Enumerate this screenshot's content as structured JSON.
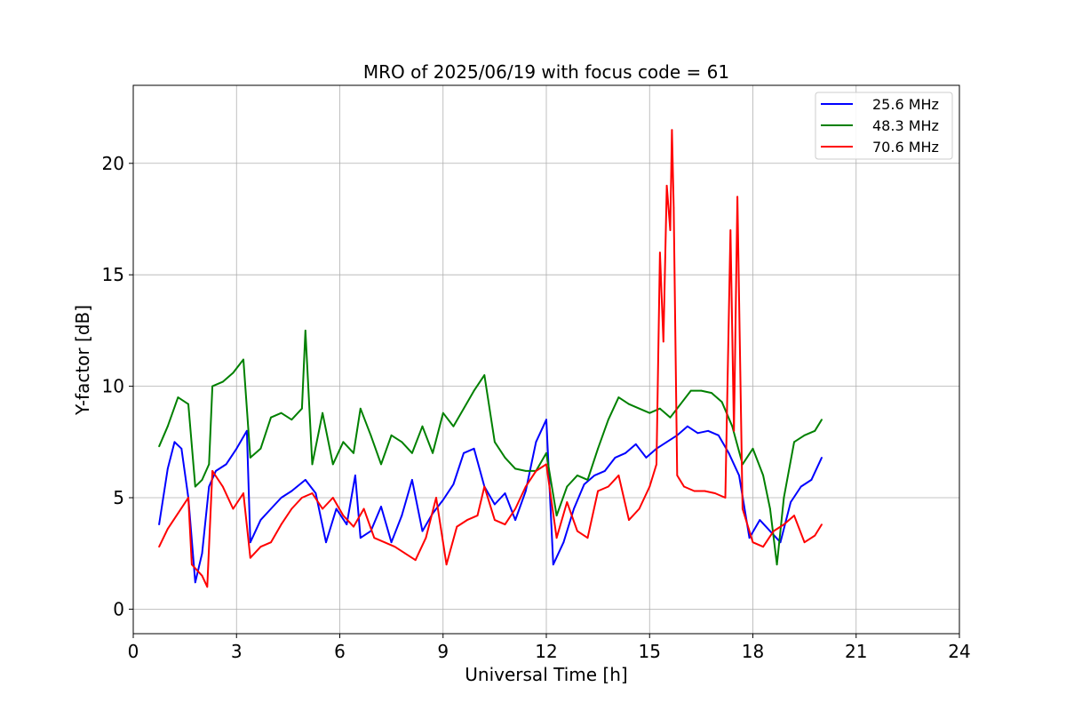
{
  "chart_data": {
    "type": "line",
    "title": "MRO of 2025/06/19 with focus code = 61",
    "xlabel": "Universal Time [h]",
    "ylabel": "Y-factor [dB]",
    "xlim": [
      0,
      24
    ],
    "ylim": [
      -1.1,
      23.5
    ],
    "xticks": [
      0,
      3,
      6,
      9,
      12,
      15,
      18,
      21,
      24
    ],
    "yticks": [
      0,
      5,
      10,
      15,
      20
    ],
    "grid": true,
    "legend": "top-right",
    "series": [
      {
        "name": "25.6 MHz",
        "color": "#0000ff",
        "x": [
          0.75,
          1.0,
          1.2,
          1.4,
          1.6,
          1.8,
          2.0,
          2.2,
          2.4,
          2.7,
          3.0,
          3.3,
          3.4,
          3.7,
          4.0,
          4.3,
          4.6,
          5.0,
          5.3,
          5.6,
          5.9,
          6.2,
          6.45,
          6.6,
          6.9,
          7.2,
          7.5,
          7.8,
          8.1,
          8.4,
          8.7,
          9.0,
          9.3,
          9.6,
          9.9,
          10.2,
          10.5,
          10.8,
          11.1,
          11.4,
          11.7,
          12.0,
          12.2,
          12.5,
          12.8,
          13.1,
          13.4,
          13.7,
          14.0,
          14.3,
          14.6,
          14.9,
          15.2,
          15.5,
          15.8,
          16.1,
          16.4,
          16.7,
          17.0,
          17.3,
          17.6,
          17.9,
          18.2,
          18.5,
          18.8,
          19.1,
          19.4,
          19.7,
          20.0
        ],
        "values": [
          3.8,
          6.3,
          7.5,
          7.2,
          5.0,
          1.2,
          2.5,
          5.5,
          6.2,
          6.5,
          7.2,
          8.0,
          3.0,
          4.0,
          4.5,
          5.0,
          5.3,
          5.8,
          5.2,
          3.0,
          4.5,
          3.8,
          6.0,
          3.2,
          3.5,
          4.6,
          3.0,
          4.2,
          5.8,
          3.5,
          4.3,
          4.9,
          5.6,
          7.0,
          7.2,
          5.5,
          4.7,
          5.2,
          4.0,
          5.3,
          7.5,
          8.5,
          2.0,
          3.0,
          4.5,
          5.6,
          6.0,
          6.2,
          6.8,
          7.0,
          7.4,
          6.8,
          7.2,
          7.5,
          7.8,
          8.2,
          7.9,
          8.0,
          7.8,
          7.0,
          6.0,
          3.2,
          4.0,
          3.5,
          3.0,
          4.8,
          5.5,
          5.8,
          6.8
        ]
      },
      {
        "name": "48.3 MHz",
        "color": "#008000",
        "x": [
          0.75,
          1.0,
          1.3,
          1.6,
          1.8,
          2.0,
          2.2,
          2.3,
          2.6,
          2.9,
          3.2,
          3.4,
          3.7,
          4.0,
          4.3,
          4.6,
          4.9,
          5.0,
          5.2,
          5.5,
          5.8,
          6.1,
          6.4,
          6.6,
          6.9,
          7.2,
          7.5,
          7.8,
          8.1,
          8.4,
          8.7,
          9.0,
          9.3,
          9.6,
          9.9,
          10.2,
          10.5,
          10.8,
          11.1,
          11.4,
          11.7,
          12.0,
          12.3,
          12.6,
          12.9,
          13.2,
          13.5,
          13.8,
          14.1,
          14.4,
          14.7,
          15.0,
          15.3,
          15.6,
          15.9,
          16.2,
          16.5,
          16.8,
          17.1,
          17.4,
          17.7,
          18.0,
          18.3,
          18.5,
          18.7,
          18.9,
          19.2,
          19.5,
          19.8,
          20.0
        ],
        "values": [
          7.3,
          8.2,
          9.5,
          9.2,
          5.5,
          5.8,
          6.5,
          10.0,
          10.2,
          10.6,
          11.2,
          6.8,
          7.2,
          8.6,
          8.8,
          8.5,
          9.0,
          12.5,
          6.5,
          8.8,
          6.5,
          7.5,
          7.0,
          9.0,
          7.8,
          6.5,
          7.8,
          7.5,
          7.0,
          8.2,
          7.0,
          8.8,
          8.2,
          9.0,
          9.8,
          10.5,
          7.5,
          6.8,
          6.3,
          6.2,
          6.2,
          7.0,
          4.2,
          5.5,
          6.0,
          5.8,
          7.2,
          8.5,
          9.5,
          9.2,
          9.0,
          8.8,
          9.0,
          8.6,
          9.2,
          9.8,
          9.8,
          9.7,
          9.3,
          8.2,
          6.5,
          7.2,
          6.0,
          4.5,
          2.0,
          5.0,
          7.5,
          7.8,
          8.0,
          8.5
        ]
      },
      {
        "name": "70.6 MHz",
        "color": "#ff0000",
        "x": [
          0.75,
          1.0,
          1.3,
          1.6,
          1.7,
          2.0,
          2.15,
          2.3,
          2.6,
          2.9,
          3.2,
          3.4,
          3.7,
          4.0,
          4.3,
          4.6,
          4.9,
          5.2,
          5.5,
          5.8,
          6.1,
          6.4,
          6.7,
          7.0,
          7.3,
          7.6,
          7.9,
          8.2,
          8.5,
          8.8,
          9.1,
          9.4,
          9.7,
          10.0,
          10.2,
          10.5,
          10.8,
          11.1,
          11.4,
          11.7,
          12.0,
          12.3,
          12.6,
          12.9,
          13.2,
          13.5,
          13.8,
          14.1,
          14.4,
          14.7,
          15.0,
          15.2,
          15.3,
          15.4,
          15.5,
          15.6,
          15.65,
          15.7,
          15.8,
          16.0,
          16.3,
          16.6,
          16.9,
          17.2,
          17.35,
          17.45,
          17.55,
          17.7,
          18.0,
          18.3,
          18.6,
          18.9,
          19.2,
          19.5,
          19.8,
          20.0
        ],
        "values": [
          2.8,
          3.6,
          4.3,
          5.0,
          2.0,
          1.5,
          1.0,
          6.2,
          5.5,
          4.5,
          5.2,
          2.3,
          2.8,
          3.0,
          3.8,
          4.5,
          5.0,
          5.2,
          4.5,
          5.0,
          4.2,
          3.7,
          4.5,
          3.2,
          3.0,
          2.8,
          2.5,
          2.2,
          3.2,
          5.0,
          2.0,
          3.7,
          4.0,
          4.2,
          5.5,
          4.0,
          3.8,
          4.5,
          5.5,
          6.2,
          6.5,
          3.2,
          4.8,
          3.5,
          3.2,
          5.3,
          5.5,
          6.0,
          4.0,
          4.5,
          5.5,
          6.5,
          16.0,
          12.0,
          19.0,
          17.0,
          21.5,
          18.0,
          6.0,
          5.5,
          5.3,
          5.3,
          5.2,
          5.0,
          17.0,
          8.0,
          18.5,
          4.5,
          3.0,
          2.8,
          3.5,
          3.8,
          4.2,
          3.0,
          3.3,
          3.8
        ]
      }
    ]
  }
}
